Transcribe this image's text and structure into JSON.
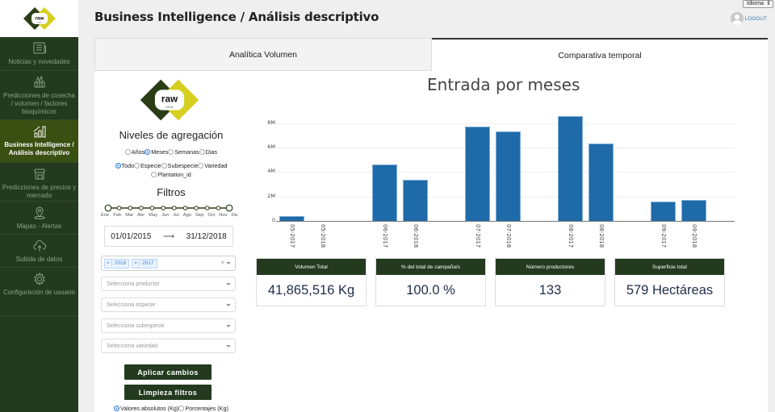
{
  "header": {
    "title": "Business Intelligence / Análisis descriptivo",
    "language_select": "Idioma",
    "logout_label": "LOGOUT"
  },
  "sidebar": {
    "logo_text": "raw",
    "logo_subtext": "DATA",
    "items": [
      {
        "label": "Noticias y novedades",
        "icon": "newspaper-icon",
        "active": false
      },
      {
        "label": "Predicciones de cosecha / volumen / factores bioquímicos",
        "icon": "harvest-icon",
        "active": false
      },
      {
        "label": "Business Intelligence / Análisis descriptivo",
        "icon": "bar-chart-icon",
        "active": true
      },
      {
        "label": "Predicciones de precios y mercado",
        "icon": "store-icon",
        "active": false
      },
      {
        "label": "Mapas - Alertas",
        "icon": "map-pin-icon",
        "active": false
      },
      {
        "label": "Subida de datos",
        "icon": "cloud-upload-icon",
        "active": false
      },
      {
        "label": "Configuración de usuario",
        "icon": "gear-icon",
        "active": false
      }
    ]
  },
  "tabs": [
    {
      "label": "Analítica Volumen",
      "active": false
    },
    {
      "label": "Comparativa temporal",
      "active": true
    }
  ],
  "filters": {
    "logo_text": "raw",
    "logo_subtext": "DATA",
    "aggregation_title": "Niveles de agregación",
    "time_levels": [
      {
        "label": "Años",
        "checked": false
      },
      {
        "label": "Meses",
        "checked": true
      },
      {
        "label": "Semanas",
        "checked": false
      },
      {
        "label": "Dias",
        "checked": false
      }
    ],
    "group_levels": [
      {
        "label": "Todo",
        "checked": true
      },
      {
        "label": "Especie",
        "checked": false
      },
      {
        "label": "Subespecie",
        "checked": false
      },
      {
        "label": "Variedad",
        "checked": false
      },
      {
        "label": "Plantation_id",
        "checked": false
      }
    ],
    "filters_title": "Filtros",
    "months": [
      "Ene",
      "Feb",
      "Mar",
      "Abr",
      "May",
      "Jun",
      "Jul",
      "Ago",
      "Sep",
      "Oct",
      "Nov",
      "Dic"
    ],
    "date_from": "01/01/2015",
    "date_arrow": "⟶",
    "date_to": "31/12/2018",
    "year_tags": [
      "2018",
      "2017"
    ],
    "tag_remove": "×",
    "clear_all": "×",
    "selects": [
      {
        "placeholder": "Selecciona productor"
      },
      {
        "placeholder": "Selecciona especie"
      },
      {
        "placeholder": "Selecciona subespecie"
      },
      {
        "placeholder": "Selecciona variedad"
      }
    ],
    "apply_button": "Aplicar cambios",
    "clear_button": "Limpieza filtros",
    "value_modes": [
      {
        "label": "Valores absolutos (Kg)",
        "checked": true
      },
      {
        "label": "Porcentajes (Kg)",
        "checked": false
      }
    ]
  },
  "chart_data": {
    "type": "bar",
    "title": "Entrada por meses",
    "xlabel": "",
    "ylabel": "",
    "categories": [
      "05-2017",
      "05-2018",
      "06-2017",
      "06-2018",
      "07-2017",
      "07-2018",
      "08-2017",
      "08-2018",
      "09-2017",
      "09-2018"
    ],
    "values": [
      400000,
      0,
      4650000,
      3350000,
      7750000,
      7300000,
      8600000,
      6350000,
      1600000,
      1700000
    ],
    "yticks": [
      "0",
      "2M",
      "4M",
      "6M",
      "8M"
    ],
    "ylim": [
      0,
      9000000
    ],
    "grid": true,
    "legend": false,
    "bar_color": "#1f6aa8"
  },
  "kpis": [
    {
      "title": "Volumen Total",
      "value": "41,865,516 Kg"
    },
    {
      "title": "% del total de campaña/s",
      "value": "100.0 %"
    },
    {
      "title": "Número productores",
      "value": "133"
    },
    {
      "title": "Superficie total",
      "value": "579 Hectáreas"
    }
  ]
}
